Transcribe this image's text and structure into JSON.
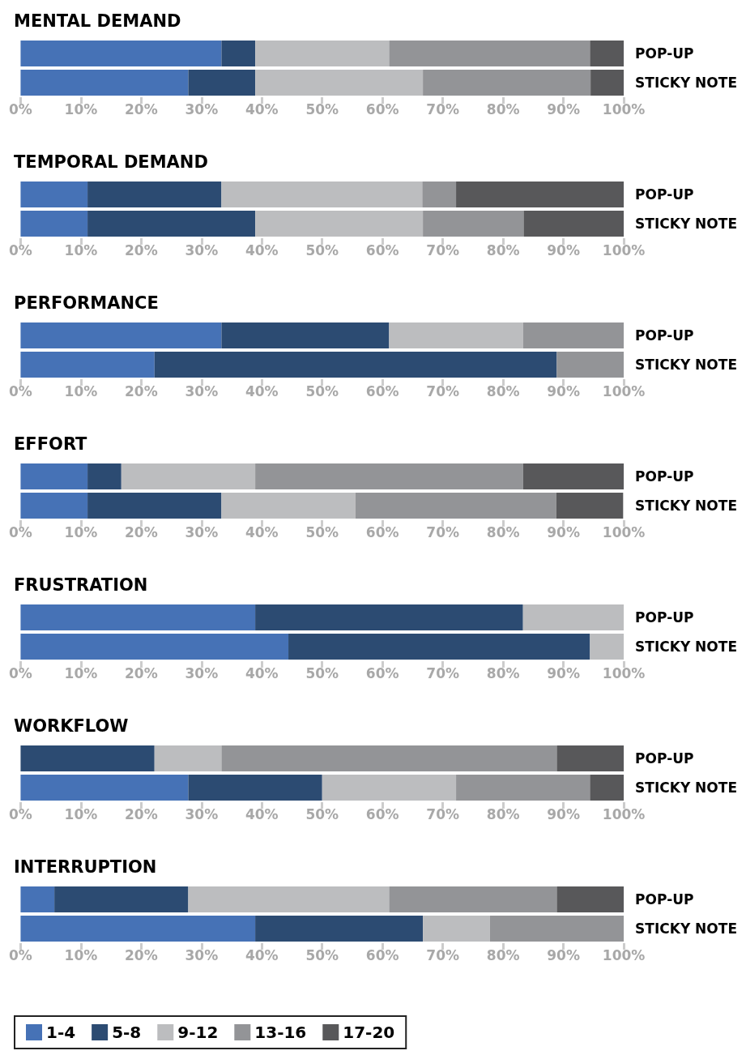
{
  "chart_data": [
    {
      "type": "bar",
      "orientation": "horizontal",
      "stacked": true,
      "title": "MENTAL DEMAND",
      "categories": [
        "POP-UP",
        "STICKY NOTE"
      ],
      "xlim": [
        0,
        100
      ],
      "xticks": [
        {
          "value": 0,
          "label": "0%"
        },
        {
          "value": 10,
          "label": "10%"
        },
        {
          "value": 20,
          "label": "20%"
        },
        {
          "value": 30,
          "label": "30%"
        },
        {
          "value": 40,
          "label": "40%"
        },
        {
          "value": 50,
          "label": "50%"
        },
        {
          "value": 60,
          "label": "60%"
        },
        {
          "value": 70,
          "label": "70%"
        },
        {
          "value": 80,
          "label": "80%"
        },
        {
          "value": 90,
          "label": "90%"
        },
        {
          "value": 100,
          "label": "100%"
        }
      ],
      "series": [
        {
          "color": "#4672b6",
          "values": [
            33.3,
            27.8
          ]
        },
        {
          "color": "#2c4b72",
          "values": [
            5.6,
            11.1
          ]
        },
        {
          "color": "#bcbdbf",
          "values": [
            22.2,
            27.8
          ]
        },
        {
          "color": "#939497",
          "values": [
            33.3,
            27.8
          ]
        },
        {
          "color": "#58585a",
          "values": [
            5.6,
            5.6
          ]
        }
      ]
    },
    {
      "type": "bar",
      "orientation": "horizontal",
      "stacked": true,
      "title": "TEMPORAL DEMAND",
      "categories": [
        "POP-UP",
        "STICKY NOTE"
      ],
      "xlim": [
        0,
        100
      ],
      "xticks": [
        {
          "value": 0,
          "label": "0%"
        },
        {
          "value": 10,
          "label": "10%"
        },
        {
          "value": 20,
          "label": "20%"
        },
        {
          "value": 30,
          "label": "30%"
        },
        {
          "value": 40,
          "label": "40%"
        },
        {
          "value": 50,
          "label": "50%"
        },
        {
          "value": 60,
          "label": "60%"
        },
        {
          "value": 70,
          "label": "70%"
        },
        {
          "value": 80,
          "label": "80%"
        },
        {
          "value": 90,
          "label": "90%"
        },
        {
          "value": 100,
          "label": "100%"
        }
      ],
      "series": [
        {
          "color": "#4672b6",
          "values": [
            11.1,
            11.1
          ]
        },
        {
          "color": "#2c4b72",
          "values": [
            22.2,
            27.8
          ]
        },
        {
          "color": "#bcbdbf",
          "values": [
            33.3,
            27.8
          ]
        },
        {
          "color": "#939497",
          "values": [
            5.6,
            16.7
          ]
        },
        {
          "color": "#58585a",
          "values": [
            27.8,
            16.7
          ]
        }
      ]
    },
    {
      "type": "bar",
      "orientation": "horizontal",
      "stacked": true,
      "title": "PERFORMANCE",
      "categories": [
        "POP-UP",
        "STICKY NOTE"
      ],
      "xlim": [
        0,
        100
      ],
      "xticks": [
        {
          "value": 0,
          "label": "0%"
        },
        {
          "value": 10,
          "label": "10%"
        },
        {
          "value": 20,
          "label": "20%"
        },
        {
          "value": 30,
          "label": "30%"
        },
        {
          "value": 40,
          "label": "40%"
        },
        {
          "value": 50,
          "label": "50%"
        },
        {
          "value": 60,
          "label": "60%"
        },
        {
          "value": 70,
          "label": "70%"
        },
        {
          "value": 80,
          "label": "80%"
        },
        {
          "value": 90,
          "label": "90%"
        },
        {
          "value": 100,
          "label": "100%"
        }
      ],
      "series": [
        {
          "color": "#4672b6",
          "values": [
            33.3,
            22.2
          ]
        },
        {
          "color": "#2c4b72",
          "values": [
            27.8,
            66.7
          ]
        },
        {
          "color": "#bcbdbf",
          "values": [
            22.2,
            0
          ]
        },
        {
          "color": "#939497",
          "values": [
            16.7,
            11.1
          ]
        },
        {
          "color": "#58585a",
          "values": [
            0,
            0
          ]
        }
      ]
    },
    {
      "type": "bar",
      "orientation": "horizontal",
      "stacked": true,
      "title": "EFFORT",
      "categories": [
        "POP-UP",
        "STICKY NOTE"
      ],
      "xlim": [
        0,
        100
      ],
      "xticks": [
        {
          "value": 0,
          "label": "0%"
        },
        {
          "value": 10,
          "label": "10%"
        },
        {
          "value": 20,
          "label": "20%"
        },
        {
          "value": 30,
          "label": "30%"
        },
        {
          "value": 40,
          "label": "40%"
        },
        {
          "value": 50,
          "label": "50%"
        },
        {
          "value": 60,
          "label": "60%"
        },
        {
          "value": 70,
          "label": "70%"
        },
        {
          "value": 80,
          "label": "80%"
        },
        {
          "value": 90,
          "label": "90%"
        },
        {
          "value": 100,
          "label": "100%"
        }
      ],
      "series": [
        {
          "color": "#4672b6",
          "values": [
            11.1,
            11.1
          ]
        },
        {
          "color": "#2c4b72",
          "values": [
            5.6,
            22.2
          ]
        },
        {
          "color": "#bcbdbf",
          "values": [
            22.2,
            22.2
          ]
        },
        {
          "color": "#939497",
          "values": [
            44.4,
            33.3
          ]
        },
        {
          "color": "#58585a",
          "values": [
            16.7,
            11.1
          ]
        }
      ]
    },
    {
      "type": "bar",
      "orientation": "horizontal",
      "stacked": true,
      "title": "FRUSTRATION",
      "categories": [
        "POP-UP",
        "STICKY NOTE"
      ],
      "xlim": [
        0,
        100
      ],
      "xticks": [
        {
          "value": 0,
          "label": "0%"
        },
        {
          "value": 10,
          "label": "10%"
        },
        {
          "value": 20,
          "label": "20%"
        },
        {
          "value": 30,
          "label": "30%"
        },
        {
          "value": 40,
          "label": "40%"
        },
        {
          "value": 50,
          "label": "50%"
        },
        {
          "value": 60,
          "label": "60%"
        },
        {
          "value": 70,
          "label": "70%"
        },
        {
          "value": 80,
          "label": "80%"
        },
        {
          "value": 90,
          "label": "90%"
        },
        {
          "value": 100,
          "label": "100%"
        }
      ],
      "series": [
        {
          "color": "#4672b6",
          "values": [
            38.9,
            44.4
          ]
        },
        {
          "color": "#2c4b72",
          "values": [
            44.4,
            50
          ]
        },
        {
          "color": "#bcbdbf",
          "values": [
            16.7,
            5.6
          ]
        },
        {
          "color": "#939497",
          "values": [
            0,
            0
          ]
        },
        {
          "color": "#58585a",
          "values": [
            0,
            0
          ]
        }
      ]
    },
    {
      "type": "bar",
      "orientation": "horizontal",
      "stacked": true,
      "title": "WORKFLOW",
      "categories": [
        "POP-UP",
        "STICKY NOTE"
      ],
      "xlim": [
        0,
        100
      ],
      "xticks": [
        {
          "value": 0,
          "label": "0%"
        },
        {
          "value": 10,
          "label": "10%"
        },
        {
          "value": 20,
          "label": "20%"
        },
        {
          "value": 30,
          "label": "30%"
        },
        {
          "value": 40,
          "label": "40%"
        },
        {
          "value": 50,
          "label": "50%"
        },
        {
          "value": 60,
          "label": "60%"
        },
        {
          "value": 70,
          "label": "70%"
        },
        {
          "value": 80,
          "label": "80%"
        },
        {
          "value": 90,
          "label": "90%"
        },
        {
          "value": 100,
          "label": "100%"
        }
      ],
      "series": [
        {
          "color": "#4672b6",
          "values": [
            0,
            27.8
          ]
        },
        {
          "color": "#2c4b72",
          "values": [
            22.2,
            22.2
          ]
        },
        {
          "color": "#bcbdbf",
          "values": [
            11.1,
            22.2
          ]
        },
        {
          "color": "#939497",
          "values": [
            55.6,
            22.2
          ]
        },
        {
          "color": "#58585a",
          "values": [
            11.1,
            5.6
          ]
        }
      ]
    },
    {
      "type": "bar",
      "orientation": "horizontal",
      "stacked": true,
      "title": "INTERRUPTION",
      "categories": [
        "POP-UP",
        "STICKY NOTE"
      ],
      "xlim": [
        0,
        100
      ],
      "xticks": [
        {
          "value": 0,
          "label": "0%"
        },
        {
          "value": 10,
          "label": "10%"
        },
        {
          "value": 20,
          "label": "20%"
        },
        {
          "value": 30,
          "label": "30%"
        },
        {
          "value": 40,
          "label": "40%"
        },
        {
          "value": 50,
          "label": "50%"
        },
        {
          "value": 60,
          "label": "60%"
        },
        {
          "value": 70,
          "label": "70%"
        },
        {
          "value": 80,
          "label": "80%"
        },
        {
          "value": 90,
          "label": "90%"
        },
        {
          "value": 100,
          "label": "100%"
        }
      ],
      "legend": "bottom",
      "series": [
        {
          "name": "1-4",
          "color": "#4672b6",
          "values": [
            5.6,
            38.9
          ]
        },
        {
          "name": "5-8",
          "color": "#2c4b72",
          "values": [
            22.2,
            27.8
          ]
        },
        {
          "name": "9-12",
          "color": "#bcbdbf",
          "values": [
            33.3,
            11.1
          ]
        },
        {
          "name": "13-16",
          "color": "#939497",
          "values": [
            27.8,
            22.2
          ]
        },
        {
          "name": "17-20",
          "color": "#58585a",
          "values": [
            11.1,
            0
          ]
        }
      ]
    }
  ]
}
